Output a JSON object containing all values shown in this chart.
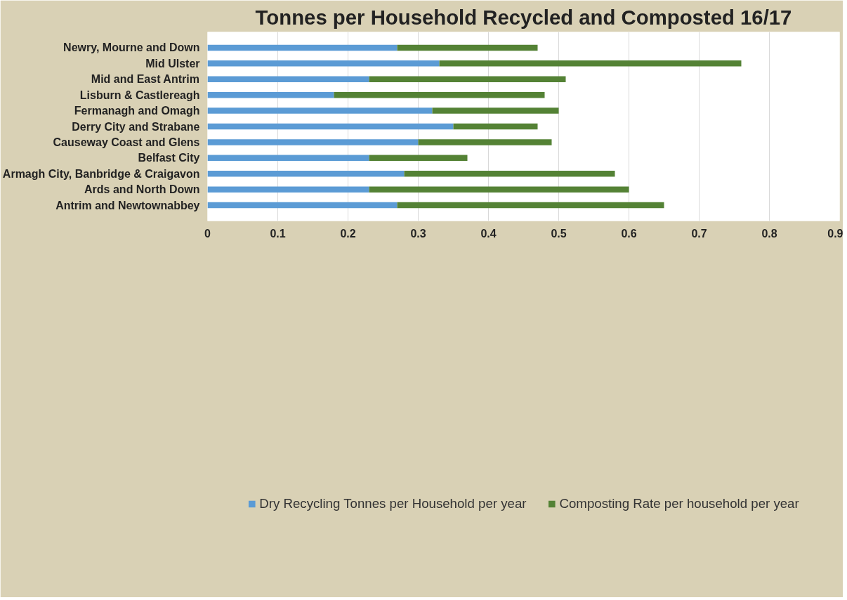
{
  "chart_data": {
    "type": "bar",
    "orientation": "horizontal",
    "stacked": true,
    "title": "Tonnes per Household Recycled and Composted 16/17",
    "categories": [
      "Newry, Mourne and Down",
      "Mid Ulster",
      "Mid and East Antrim",
      "Lisburn & Castlereagh",
      "Fermanagh and Omagh",
      "Derry City and Strabane",
      "Causeway Coast and Glens",
      "Belfast City",
      "Armagh City, Banbridge & Craigavon",
      "Ards and North Down",
      "Antrim and Newtownabbey"
    ],
    "series": [
      {
        "name": "Dry Recycling Tonnes per Household per year",
        "color": "#5b9bd5",
        "values": [
          0.27,
          0.33,
          0.23,
          0.18,
          0.32,
          0.35,
          0.3,
          0.23,
          0.28,
          0.23,
          0.27
        ]
      },
      {
        "name": "Composting Rate per household per year",
        "color": "#548235",
        "values": [
          0.2,
          0.43,
          0.28,
          0.3,
          0.18,
          0.12,
          0.19,
          0.14,
          0.3,
          0.37,
          0.38
        ]
      }
    ],
    "xlim": [
      0,
      0.9
    ],
    "xticks": [
      0,
      0.1,
      0.2,
      0.3,
      0.4,
      0.5,
      0.6,
      0.7,
      0.8,
      0.9
    ],
    "grid": "x",
    "legend": "bottom"
  }
}
